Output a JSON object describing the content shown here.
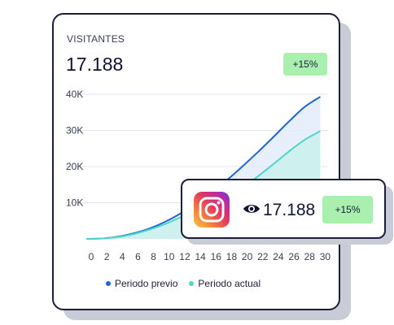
{
  "card": {
    "title": "VISITANTES",
    "value": "17.188",
    "change_badge": "+15%"
  },
  "colors": {
    "previous": "#1e66d6",
    "current": "#4fd6c8",
    "badge": "#a9efad"
  },
  "chart_data": {
    "type": "area",
    "x": [
      0,
      2,
      4,
      6,
      8,
      10,
      12,
      14,
      16,
      18,
      20,
      22,
      24,
      26,
      28,
      30
    ],
    "xlim": [
      0,
      31
    ],
    "ylim": [
      0,
      40000
    ],
    "y_ticks": [
      "10K",
      "20K",
      "30K",
      "40K"
    ],
    "y_tick_values": [
      10000,
      20000,
      30000,
      40000
    ],
    "grid": true,
    "legend_position": "bottom",
    "series": [
      {
        "name": "Periodo previo",
        "color": "#1e66d6",
        "values": [
          0,
          100,
          600,
          1500,
          2800,
          4600,
          6900,
          9700,
          12800,
          16200,
          20000,
          24000,
          28200,
          32500,
          36500,
          39300
        ]
      },
      {
        "name": "Periodo actual",
        "color": "#4fd6c8",
        "values": [
          0,
          100,
          500,
          1300,
          2500,
          4000,
          5900,
          7800,
          9600,
          11600,
          14200,
          17300,
          20700,
          24200,
          27400,
          29800
        ]
      }
    ]
  },
  "popup": {
    "icon": "instagram-icon",
    "view_icon": "eye-icon",
    "value": "17.188",
    "change_badge": "+15%"
  }
}
